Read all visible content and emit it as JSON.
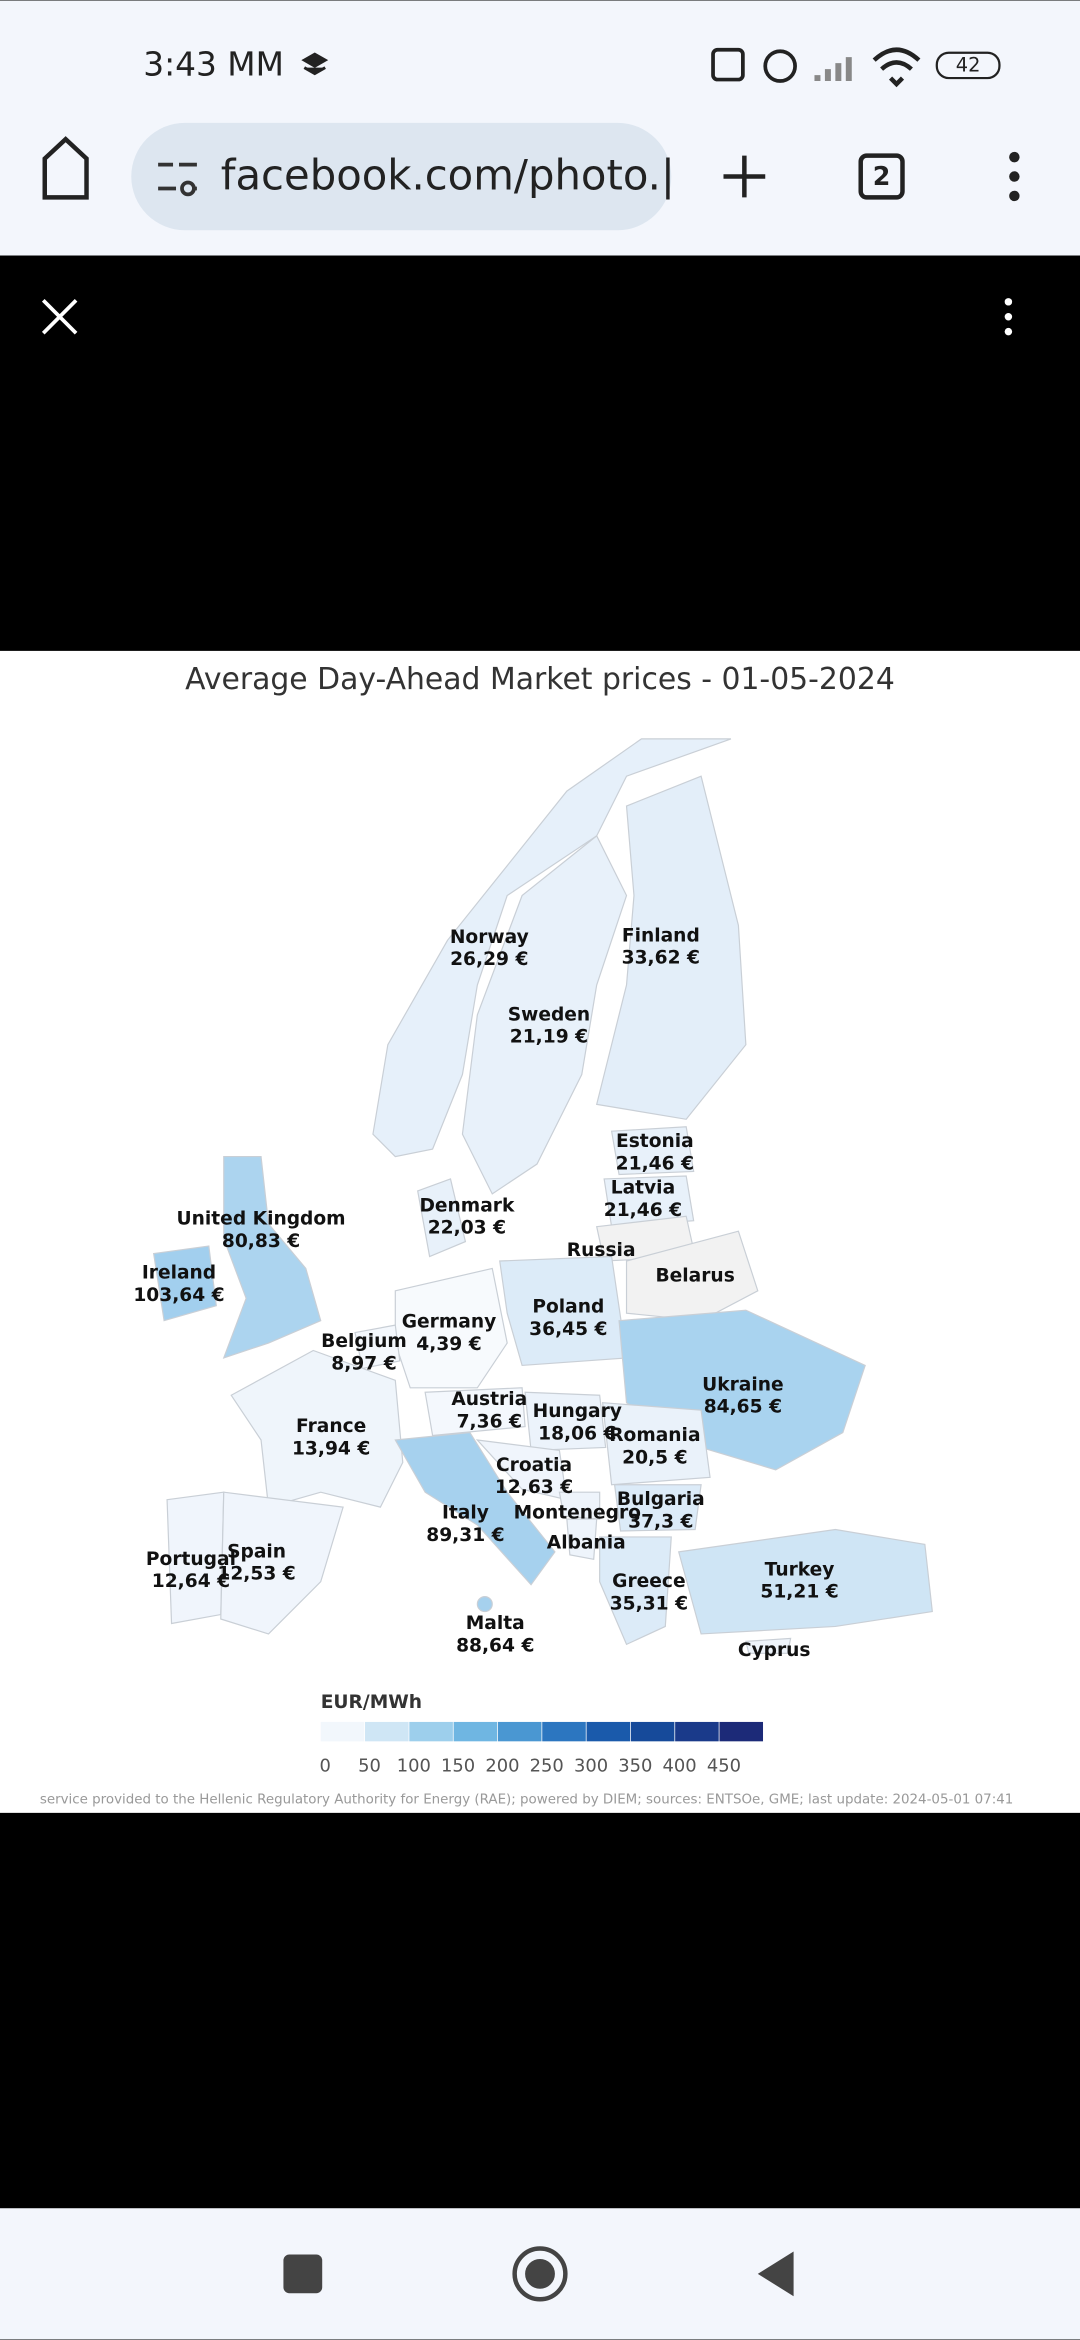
{
  "status_bar": {
    "time": "3:43 MM",
    "battery": "42"
  },
  "browser": {
    "url": "facebook.com/photo.|",
    "tab_count": "2"
  },
  "map": {
    "title": "Average Day-Ahead Market prices - 01-05-2024",
    "regions": [
      {
        "name": "Norway",
        "price": "26,29 €",
        "color": "#e6f0fa"
      },
      {
        "name": "Finland",
        "price": "33,62 €",
        "color": "#e3eef9"
      },
      {
        "name": "Sweden",
        "price": "21,19 €",
        "color": "#e8f1fa"
      },
      {
        "name": "Estonia",
        "price": "21,46 €",
        "color": "#e8f1fa"
      },
      {
        "name": "Latvia",
        "price": "21,46 €",
        "color": "#e8f1fa"
      },
      {
        "name": "Denmark",
        "price": "22,03 €",
        "color": "#e8f1fa"
      },
      {
        "name": "Russia",
        "color": "#f2f2f2"
      },
      {
        "name": "Belarus",
        "color": "#f2f2f2"
      },
      {
        "name": "United Kingdom",
        "price": "80,83 €",
        "color": "#acd4ef"
      },
      {
        "name": "Ireland",
        "price": "103,64 €",
        "color": "#a2cfee"
      },
      {
        "name": "Poland",
        "price": "36,45 €",
        "color": "#dcebf8"
      },
      {
        "name": "Germany",
        "price": "4,39 €",
        "color": "#f7fafd"
      },
      {
        "name": "Belgium",
        "price": "8,97 €",
        "color": "#f4f8fd"
      },
      {
        "name": "Ukraine",
        "price": "84,65 €",
        "color": "#a9d3ef"
      },
      {
        "name": "Austria",
        "price": "7,36 €",
        "color": "#f4f8fd"
      },
      {
        "name": "Hungary",
        "price": "18,06 €",
        "color": "#ecf3fb"
      },
      {
        "name": "France",
        "price": "13,94 €",
        "color": "#eff5fb"
      },
      {
        "name": "Romania",
        "price": "20,5 €",
        "color": "#eaf2fa"
      },
      {
        "name": "Croatia",
        "price": "12,63 €",
        "color": "#f0f5fc"
      },
      {
        "name": "Bulgaria",
        "price": "37,3 €",
        "color": "#dcebf8"
      },
      {
        "name": "Italy",
        "price": "89,31 €",
        "color": "#a6d1ee"
      },
      {
        "name": "Montenegro",
        "color": "#eef4fb"
      },
      {
        "name": "Albania",
        "color": "#eef4fb"
      },
      {
        "name": "Portugal",
        "price": "12,64 €",
        "color": "#f0f5fc"
      },
      {
        "name": "Spain",
        "price": "12,53 €",
        "color": "#f0f5fc"
      },
      {
        "name": "Greece",
        "price": "35,31 €",
        "color": "#dcebf8"
      },
      {
        "name": "Turkey",
        "price": "51,21 €",
        "color": "#cfe5f5"
      },
      {
        "name": "Malta",
        "price": "88,64 €",
        "color": "#a6d1ee"
      },
      {
        "name": "Cyprus",
        "color": "#eef4fb"
      }
    ],
    "legend": {
      "unit": "EUR/MWh",
      "ticks": [
        0,
        50,
        100,
        150,
        200,
        250,
        300,
        350,
        400,
        450
      ],
      "colors": [
        "#f2f7fc",
        "#cfe6f5",
        "#9dcfec",
        "#6fb6e2",
        "#4a97d2",
        "#2c76c0",
        "#1a5aab",
        "#164a9a",
        "#1a3a8a",
        "#1c2a78"
      ]
    },
    "footer": "service provided to the Hellenic Regulatory Authority for Energy (RAE); powered by DIEM; sources: ENTSOe, GME; last update: 2024-05-01 07:41"
  }
}
